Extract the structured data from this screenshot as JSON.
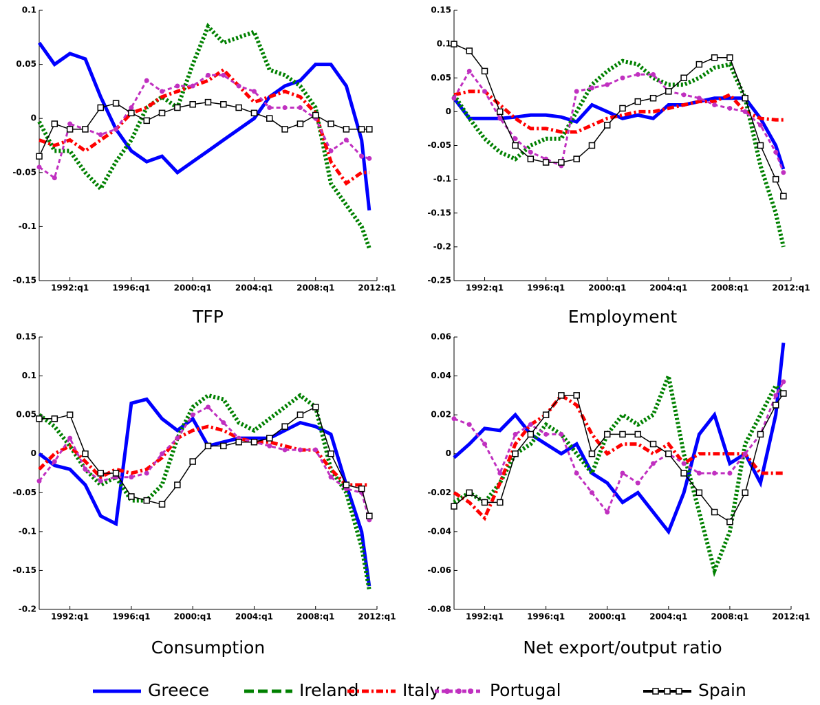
{
  "chart_data": [
    {
      "type": "line",
      "title": "TFP",
      "x": [
        1990,
        1991,
        1992,
        1993,
        1994,
        1995,
        1996,
        1997,
        1998,
        1999,
        2000,
        2001,
        2002,
        2003,
        2004,
        2005,
        2006,
        2007,
        2008,
        2009,
        2010,
        2011,
        2011.5
      ],
      "xlim": [
        1990,
        2012
      ],
      "ylim": [
        -0.15,
        0.1
      ],
      "xticks": [
        {
          "value": 1992,
          "label": "1992:q1"
        },
        {
          "value": 1996,
          "label": "1996:q1"
        },
        {
          "value": 2000,
          "label": "2000:q1"
        },
        {
          "value": 2004,
          "label": "2004:q1"
        },
        {
          "value": 2008,
          "label": "2008:q1"
        },
        {
          "value": 2012,
          "label": "2012:q1"
        }
      ],
      "yticks": [
        -0.15,
        -0.1,
        -0.05,
        0,
        0.05,
        0.1
      ],
      "series": [
        {
          "name": "Greece",
          "color": "#0000ff",
          "dash": "solid",
          "marker": "none",
          "values": [
            0.07,
            0.05,
            0.06,
            0.055,
            0.02,
            -0.01,
            -0.03,
            -0.04,
            -0.035,
            -0.05,
            -0.04,
            -0.03,
            -0.02,
            -0.01,
            0.0,
            0.02,
            0.03,
            0.035,
            0.05,
            0.05,
            0.03,
            -0.02,
            -0.085
          ]
        },
        {
          "name": "Ireland",
          "color": "#008000",
          "dash": "dotted",
          "marker": "none",
          "values": [
            -0.003,
            -0.03,
            -0.03,
            -0.05,
            -0.065,
            -0.04,
            -0.02,
            0.01,
            0.02,
            0.01,
            0.05,
            0.085,
            0.07,
            0.075,
            0.08,
            0.045,
            0.04,
            0.03,
            0.01,
            -0.06,
            -0.08,
            -0.1,
            -0.12
          ]
        },
        {
          "name": "Italy",
          "color": "#ff0000",
          "dash": "dashdot",
          "marker": "none",
          "values": [
            -0.02,
            -0.025,
            -0.02,
            -0.03,
            -0.02,
            -0.01,
            0.005,
            0.01,
            0.02,
            0.025,
            0.03,
            0.035,
            0.045,
            0.03,
            0.015,
            0.02,
            0.025,
            0.02,
            0.005,
            -0.04,
            -0.06,
            -0.05,
            -0.05
          ]
        },
        {
          "name": "Portugal",
          "color": "#c030c0",
          "dash": "dashed",
          "marker": "circle",
          "values": [
            -0.045,
            -0.055,
            -0.005,
            -0.01,
            -0.015,
            -0.01,
            0.01,
            0.035,
            0.025,
            0.03,
            0.03,
            0.04,
            0.04,
            0.03,
            0.025,
            0.01,
            0.01,
            0.01,
            0.0,
            -0.03,
            -0.02,
            -0.035,
            -0.037
          ]
        },
        {
          "name": "Spain",
          "color": "#000000",
          "dash": "solid",
          "marker": "square",
          "values": [
            -0.035,
            -0.005,
            -0.01,
            -0.01,
            0.01,
            0.014,
            0.005,
            -0.002,
            0.005,
            0.01,
            0.013,
            0.015,
            0.013,
            0.01,
            0.005,
            0.0,
            -0.01,
            -0.005,
            0.003,
            -0.005,
            -0.01,
            -0.01,
            -0.01
          ]
        }
      ]
    },
    {
      "type": "line",
      "title": "Employment",
      "x": [
        1990,
        1991,
        1992,
        1993,
        1994,
        1995,
        1996,
        1997,
        1998,
        1999,
        2000,
        2001,
        2002,
        2003,
        2004,
        2005,
        2006,
        2007,
        2008,
        2009,
        2010,
        2011,
        2011.5
      ],
      "xlim": [
        1990,
        2012
      ],
      "ylim": [
        -0.25,
        0.15
      ],
      "xticks": [
        {
          "value": 1992,
          "label": "1992:q1"
        },
        {
          "value": 1996,
          "label": "1996:q1"
        },
        {
          "value": 2000,
          "label": "2000:q1"
        },
        {
          "value": 2004,
          "label": "2004:q1"
        },
        {
          "value": 2008,
          "label": "2008:q1"
        },
        {
          "value": 2012,
          "label": "2012:q1"
        }
      ],
      "yticks": [
        -0.25,
        -0.2,
        -0.15,
        -0.1,
        -0.05,
        0,
        0.05,
        0.1,
        0.15
      ],
      "series": [
        {
          "name": "Greece",
          "color": "#0000ff",
          "dash": "solid",
          "marker": "none",
          "values": [
            0.02,
            -0.01,
            -0.01,
            -0.01,
            -0.008,
            -0.005,
            -0.005,
            -0.008,
            -0.015,
            0.01,
            0.0,
            -0.01,
            -0.005,
            -0.01,
            0.01,
            0.01,
            0.015,
            0.02,
            0.02,
            0.02,
            -0.01,
            -0.05,
            -0.085
          ]
        },
        {
          "name": "Ireland",
          "color": "#008000",
          "dash": "dotted",
          "marker": "none",
          "values": [
            0.025,
            -0.01,
            -0.04,
            -0.06,
            -0.07,
            -0.05,
            -0.04,
            -0.04,
            0.0,
            0.04,
            0.06,
            0.075,
            0.07,
            0.05,
            0.04,
            0.04,
            0.05,
            0.065,
            0.07,
            0.02,
            -0.08,
            -0.15,
            -0.2
          ]
        },
        {
          "name": "Italy",
          "color": "#ff0000",
          "dash": "dashdot",
          "marker": "none",
          "values": [
            0.025,
            0.03,
            0.03,
            0.01,
            -0.01,
            -0.025,
            -0.025,
            -0.03,
            -0.03,
            -0.02,
            -0.01,
            -0.005,
            0.0,
            0.0,
            0.005,
            0.01,
            0.015,
            0.015,
            0.025,
            0.0,
            -0.01,
            -0.012,
            -0.012
          ]
        },
        {
          "name": "Portugal",
          "color": "#c030c0",
          "dash": "dashed",
          "marker": "circle",
          "values": [
            0.02,
            0.06,
            0.03,
            -0.01,
            -0.04,
            -0.06,
            -0.07,
            -0.08,
            0.03,
            0.035,
            0.04,
            0.05,
            0.055,
            0.055,
            0.03,
            0.025,
            0.02,
            0.01,
            0.005,
            0.0,
            -0.02,
            -0.06,
            -0.09
          ]
        },
        {
          "name": "Spain",
          "color": "#000000",
          "dash": "solid",
          "marker": "square",
          "values": [
            0.1,
            0.09,
            0.06,
            0.0,
            -0.05,
            -0.07,
            -0.075,
            -0.075,
            -0.07,
            -0.05,
            -0.02,
            0.005,
            0.015,
            0.02,
            0.03,
            0.05,
            0.07,
            0.08,
            0.08,
            0.02,
            -0.05,
            -0.1,
            -0.125
          ]
        }
      ]
    },
    {
      "type": "line",
      "title": "Consumption",
      "x": [
        1990,
        1991,
        1992,
        1993,
        1994,
        1995,
        1996,
        1997,
        1998,
        1999,
        2000,
        2001,
        2002,
        2003,
        2004,
        2005,
        2006,
        2007,
        2008,
        2009,
        2010,
        2011,
        2011.5
      ],
      "xlim": [
        1990,
        2012
      ],
      "ylim": [
        -0.2,
        0.15
      ],
      "xticks": [
        {
          "value": 1992,
          "label": "1992:q1"
        },
        {
          "value": 1996,
          "label": "1996:q1"
        },
        {
          "value": 2000,
          "label": "2000:q1"
        },
        {
          "value": 2004,
          "label": "2004:q1"
        },
        {
          "value": 2008,
          "label": "2008:q1"
        },
        {
          "value": 2012,
          "label": "2012:q1"
        }
      ],
      "yticks": [
        -0.2,
        -0.15,
        -0.1,
        -0.05,
        0,
        0.05,
        0.1,
        0.15
      ],
      "series": [
        {
          "name": "Greece",
          "color": "#0000ff",
          "dash": "solid",
          "marker": "none",
          "values": [
            0.0,
            -0.015,
            -0.02,
            -0.04,
            -0.08,
            -0.09,
            0.065,
            0.07,
            0.045,
            0.03,
            0.045,
            0.01,
            0.015,
            0.02,
            0.02,
            0.02,
            0.03,
            0.04,
            0.035,
            0.025,
            -0.04,
            -0.1,
            -0.17
          ]
        },
        {
          "name": "Ireland",
          "color": "#008000",
          "dash": "dotted",
          "marker": "none",
          "values": [
            0.05,
            0.035,
            0.01,
            -0.02,
            -0.04,
            -0.03,
            -0.06,
            -0.06,
            -0.04,
            0.02,
            0.06,
            0.075,
            0.07,
            0.04,
            0.03,
            0.045,
            0.06,
            0.075,
            0.06,
            -0.02,
            -0.05,
            -0.12,
            -0.175
          ]
        },
        {
          "name": "Italy",
          "color": "#ff0000",
          "dash": "dashdot",
          "marker": "none",
          "values": [
            -0.02,
            0.0,
            0.01,
            -0.01,
            -0.03,
            -0.02,
            -0.025,
            -0.02,
            -0.005,
            0.02,
            0.03,
            0.035,
            0.03,
            0.02,
            0.015,
            0.015,
            0.01,
            0.005,
            0.005,
            -0.02,
            -0.04,
            -0.04,
            -0.04
          ]
        },
        {
          "name": "Portugal",
          "color": "#c030c0",
          "dash": "dashed",
          "marker": "circle",
          "values": [
            -0.035,
            -0.01,
            0.02,
            -0.02,
            -0.035,
            -0.03,
            -0.03,
            -0.025,
            0.0,
            0.02,
            0.05,
            0.06,
            0.04,
            0.02,
            0.015,
            0.01,
            0.005,
            0.005,
            0.005,
            -0.03,
            -0.045,
            -0.05,
            -0.085
          ]
        },
        {
          "name": "Spain",
          "color": "#000000",
          "dash": "solid",
          "marker": "square",
          "values": [
            0.045,
            0.045,
            0.05,
            0.0,
            -0.025,
            -0.025,
            -0.055,
            -0.06,
            -0.065,
            -0.04,
            -0.01,
            0.01,
            0.01,
            0.015,
            0.015,
            0.02,
            0.035,
            0.05,
            0.06,
            0.0,
            -0.04,
            -0.045,
            -0.08
          ]
        }
      ]
    },
    {
      "type": "line",
      "title": "Net export/output ratio",
      "x": [
        1990,
        1991,
        1992,
        1993,
        1994,
        1995,
        1996,
        1997,
        1998,
        1999,
        2000,
        2001,
        2002,
        2003,
        2004,
        2005,
        2006,
        2007,
        2008,
        2009,
        2010,
        2011,
        2011.5
      ],
      "xlim": [
        1990,
        2012
      ],
      "ylim": [
        -0.08,
        0.06
      ],
      "xticks": [
        {
          "value": 1992,
          "label": "1992:q1"
        },
        {
          "value": 1996,
          "label": "1996:q1"
        },
        {
          "value": 2000,
          "label": "2000:q1"
        },
        {
          "value": 2004,
          "label": "2004:q1"
        },
        {
          "value": 2008,
          "label": "2008:q1"
        },
        {
          "value": 2012,
          "label": "2012:q1"
        }
      ],
      "yticks": [
        -0.08,
        -0.06,
        -0.04,
        -0.02,
        0,
        0.02,
        0.04,
        0.06
      ],
      "series": [
        {
          "name": "Greece",
          "color": "#0000ff",
          "dash": "solid",
          "marker": "none",
          "values": [
            -0.002,
            0.005,
            0.013,
            0.012,
            0.02,
            0.01,
            0.005,
            0.0,
            0.005,
            -0.01,
            -0.015,
            -0.025,
            -0.02,
            -0.03,
            -0.04,
            -0.02,
            0.01,
            0.02,
            -0.005,
            0.0,
            -0.015,
            0.02,
            0.057
          ]
        },
        {
          "name": "Ireland",
          "color": "#008000",
          "dash": "dotted",
          "marker": "none",
          "values": [
            -0.025,
            -0.02,
            -0.025,
            -0.015,
            0.0,
            0.005,
            0.015,
            0.01,
            0.0,
            -0.01,
            0.01,
            0.02,
            0.015,
            0.02,
            0.04,
            0.0,
            -0.03,
            -0.06,
            -0.04,
            0.005,
            0.02,
            0.035,
            0.03
          ]
        },
        {
          "name": "Italy",
          "color": "#ff0000",
          "dash": "dashdot",
          "marker": "none",
          "values": [
            -0.02,
            -0.025,
            -0.033,
            -0.015,
            0.005,
            0.015,
            0.02,
            0.03,
            0.025,
            0.01,
            0.0,
            0.005,
            0.005,
            0.0,
            0.005,
            -0.005,
            0.0,
            0.0,
            0.0,
            0.0,
            -0.01,
            -0.01,
            -0.01
          ]
        },
        {
          "name": "Portugal",
          "color": "#c030c0",
          "dash": "dashed",
          "marker": "circle",
          "values": [
            0.018,
            0.015,
            0.005,
            -0.01,
            0.01,
            0.015,
            0.01,
            0.01,
            -0.01,
            -0.02,
            -0.03,
            -0.01,
            -0.015,
            -0.005,
            0.0,
            -0.005,
            -0.01,
            -0.01,
            -0.01,
            0.0,
            0.01,
            0.03,
            0.037
          ]
        },
        {
          "name": "Spain",
          "color": "#000000",
          "dash": "solid",
          "marker": "square",
          "values": [
            -0.027,
            -0.02,
            -0.025,
            -0.025,
            0.0,
            0.01,
            0.02,
            0.03,
            0.03,
            0.0,
            0.01,
            0.01,
            0.01,
            0.005,
            0.0,
            -0.01,
            -0.02,
            -0.03,
            -0.035,
            -0.02,
            0.01,
            0.025,
            0.031
          ]
        }
      ]
    }
  ]
}
